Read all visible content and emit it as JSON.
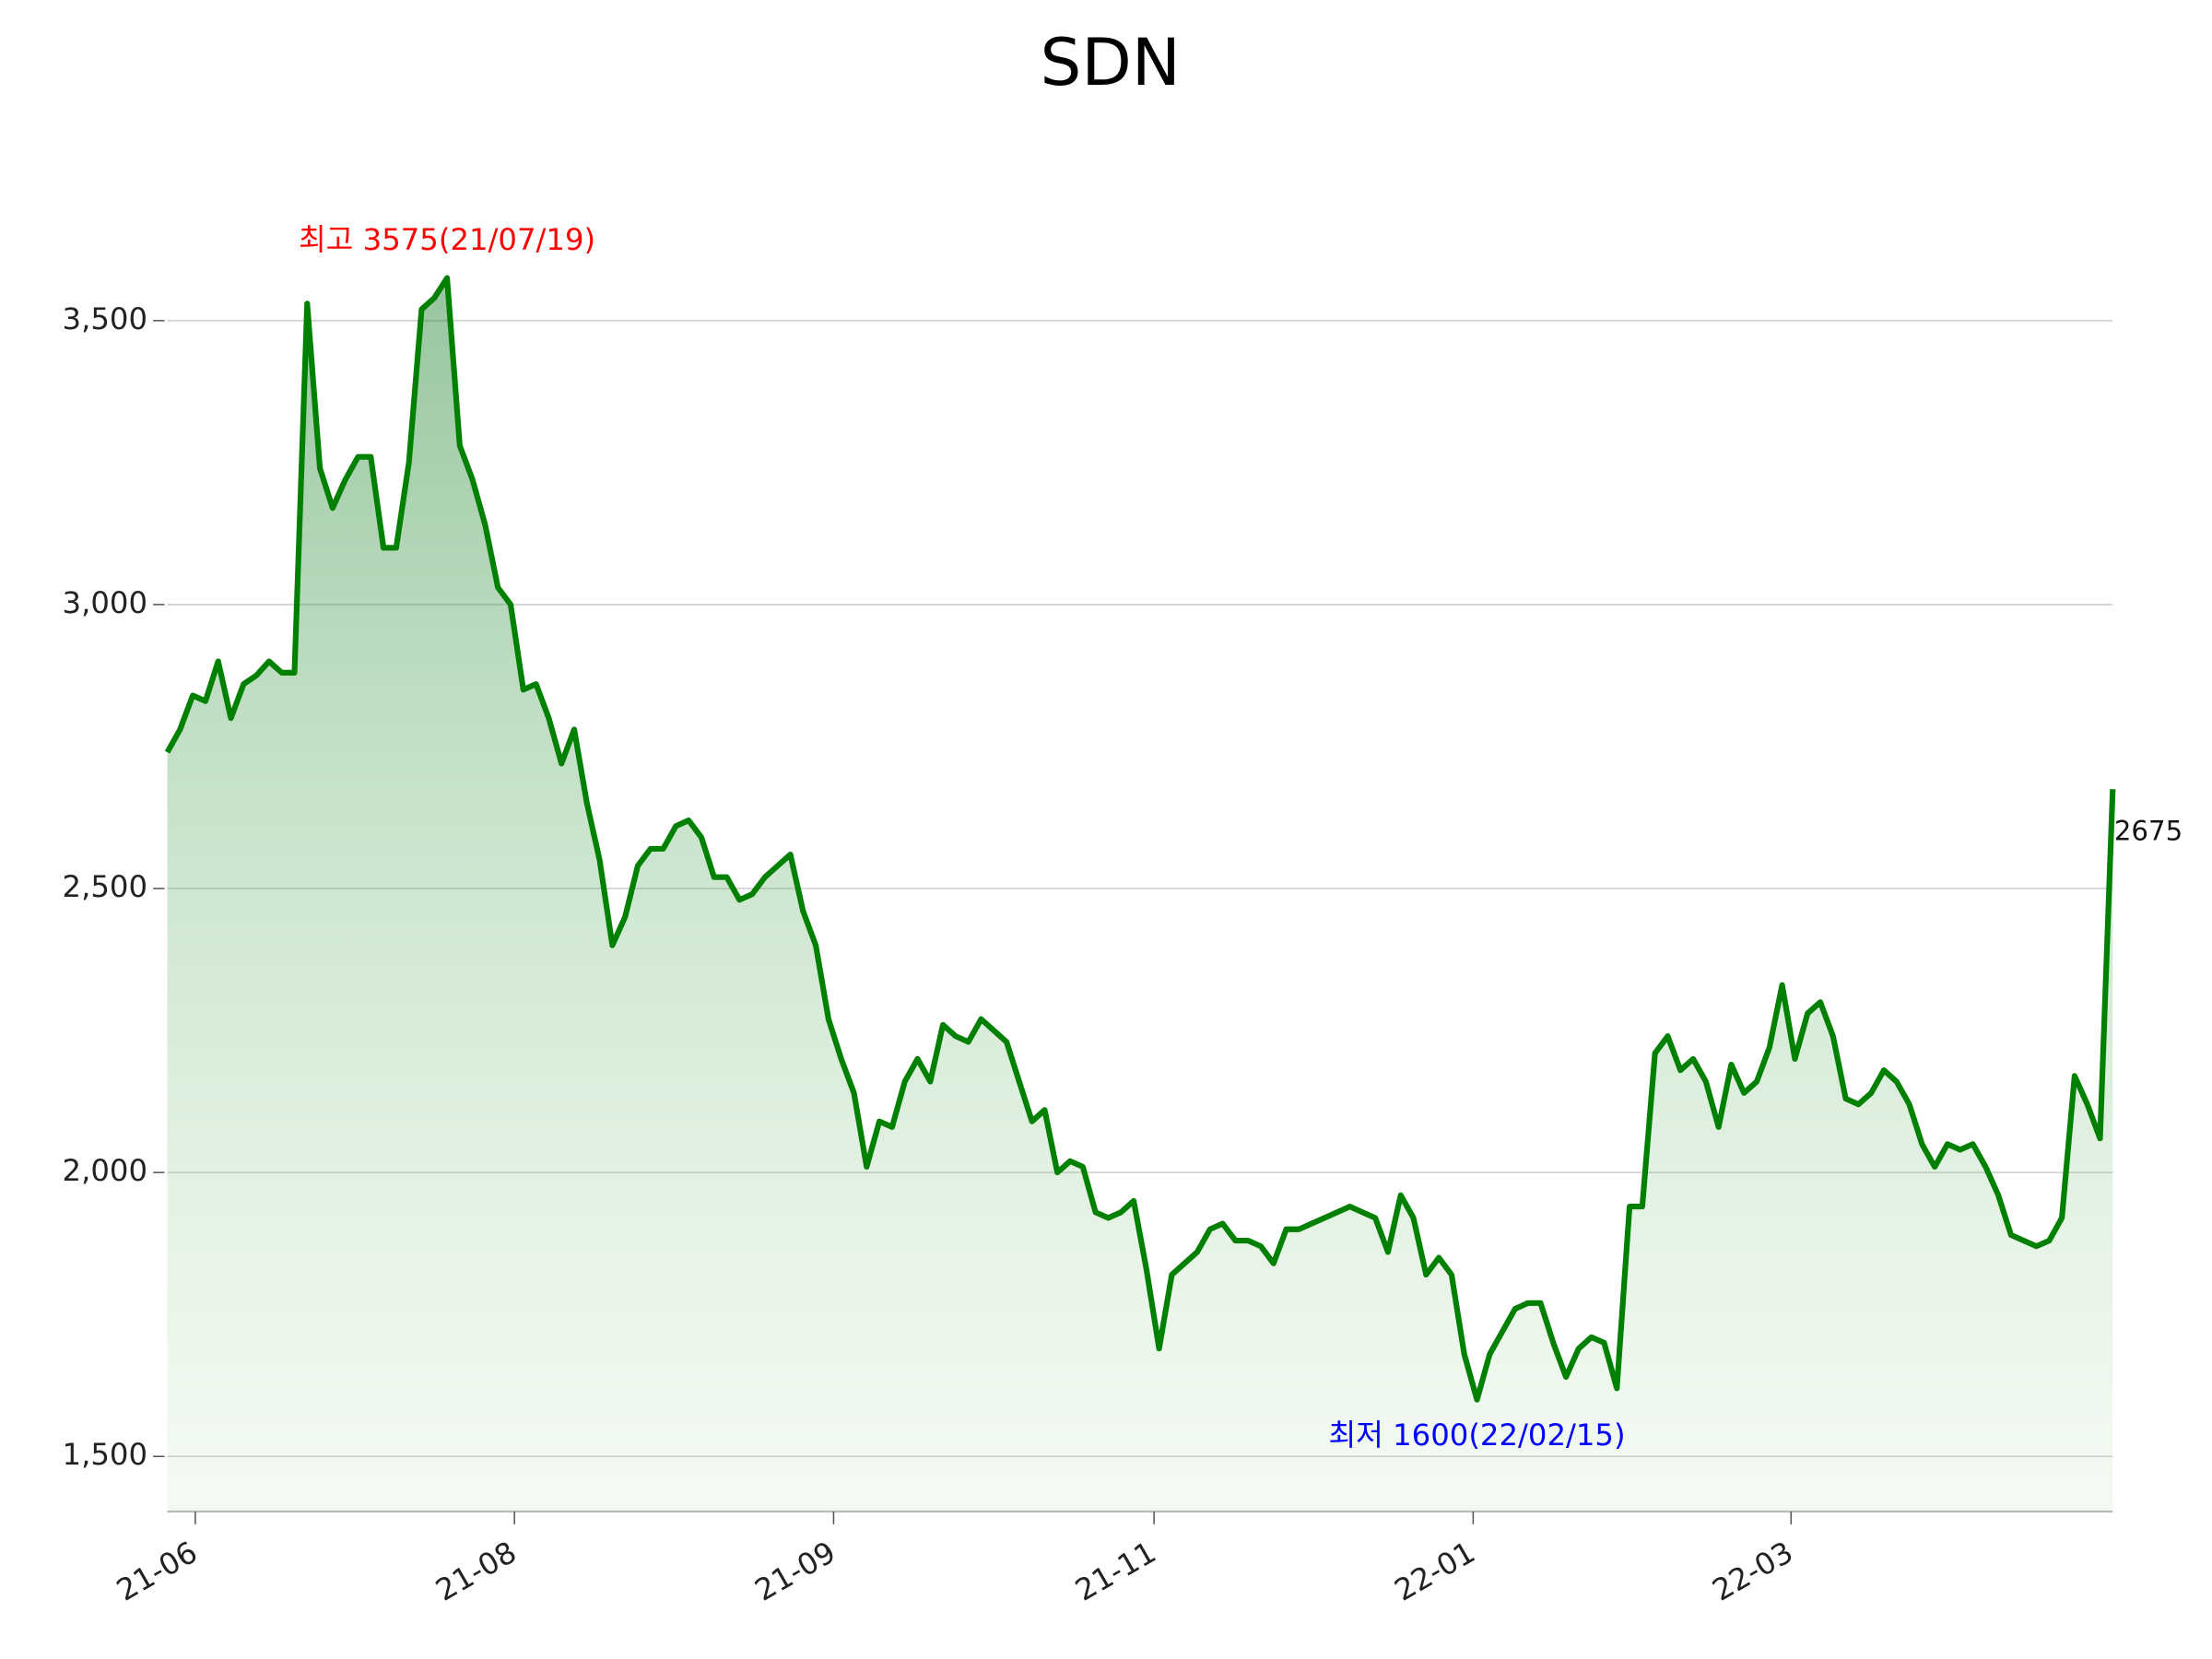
{
  "chart_data": {
    "type": "line",
    "title": "SDN",
    "series": [
      {
        "name": "SDN",
        "color": "#008000",
        "values": [
          2740,
          2780,
          2840,
          2830,
          2900,
          2800,
          2860,
          2875,
          2900,
          2880,
          2880,
          3530,
          3240,
          3170,
          3220,
          3260,
          3260,
          3100,
          3100,
          3250,
          3520,
          3540,
          3575,
          3280,
          3220,
          3140,
          3030,
          3000,
          2850,
          2860,
          2800,
          2720,
          2780,
          2650,
          2550,
          2400,
          2450,
          2540,
          2570,
          2570,
          2610,
          2620,
          2590,
          2520,
          2520,
          2480,
          2490,
          2520,
          2540,
          2560,
          2460,
          2400,
          2270,
          2200,
          2140,
          2010,
          2090,
          2080,
          2160,
          2200,
          2160,
          2260,
          2240,
          2230,
          2270,
          2250,
          2230,
          2160,
          2090,
          2110,
          2000,
          2020,
          2010,
          1930,
          1920,
          1930,
          1950,
          1830,
          1690,
          1820,
          1840,
          1860,
          1900,
          1910,
          1880,
          1880,
          1870,
          1840,
          1900,
          1900,
          1910,
          1920,
          1930,
          1940,
          1930,
          1920,
          1860,
          1960,
          1920,
          1820,
          1850,
          1820,
          1680,
          1600,
          1680,
          1720,
          1760,
          1770,
          1770,
          1700,
          1640,
          1690,
          1710,
          1700,
          1620,
          1940,
          1940,
          2210,
          2240,
          2180,
          2200,
          2160,
          2080,
          2190,
          2140,
          2160,
          2220,
          2330,
          2200,
          2280,
          2300,
          2240,
          2130,
          2120,
          2140,
          2180,
          2160,
          2120,
          2050,
          2010,
          2050,
          2040,
          2050,
          2010,
          1960,
          1890,
          1880,
          1870,
          1880,
          1920,
          2170,
          2120,
          2060,
          2675
        ]
      }
    ],
    "xlim": [
      0,
      153
    ],
    "xticks": [
      {
        "value": 2.2,
        "label": "21-06"
      },
      {
        "value": 27.3,
        "label": "21-08"
      },
      {
        "value": 52.4,
        "label": "21-09"
      },
      {
        "value": 77.6,
        "label": "21-11"
      },
      {
        "value": 102.7,
        "label": "22-01"
      },
      {
        "value": 127.7,
        "label": "22-03"
      }
    ],
    "ylim": [
      1403,
      3690
    ],
    "yticks": [
      {
        "value": 1500,
        "label": "1,500"
      },
      {
        "value": 2000,
        "label": "2,000"
      },
      {
        "value": 2500,
        "label": "2,500"
      },
      {
        "value": 3000,
        "label": "3,000"
      },
      {
        "value": 3500,
        "label": "3,500"
      }
    ],
    "grid": true,
    "annotations": [
      {
        "text": "최고 3575(21/07/19)",
        "color": "#ff0000"
      },
      {
        "text": "최저 1600(22/02/15)",
        "color": "#0000ff"
      }
    ]
  }
}
